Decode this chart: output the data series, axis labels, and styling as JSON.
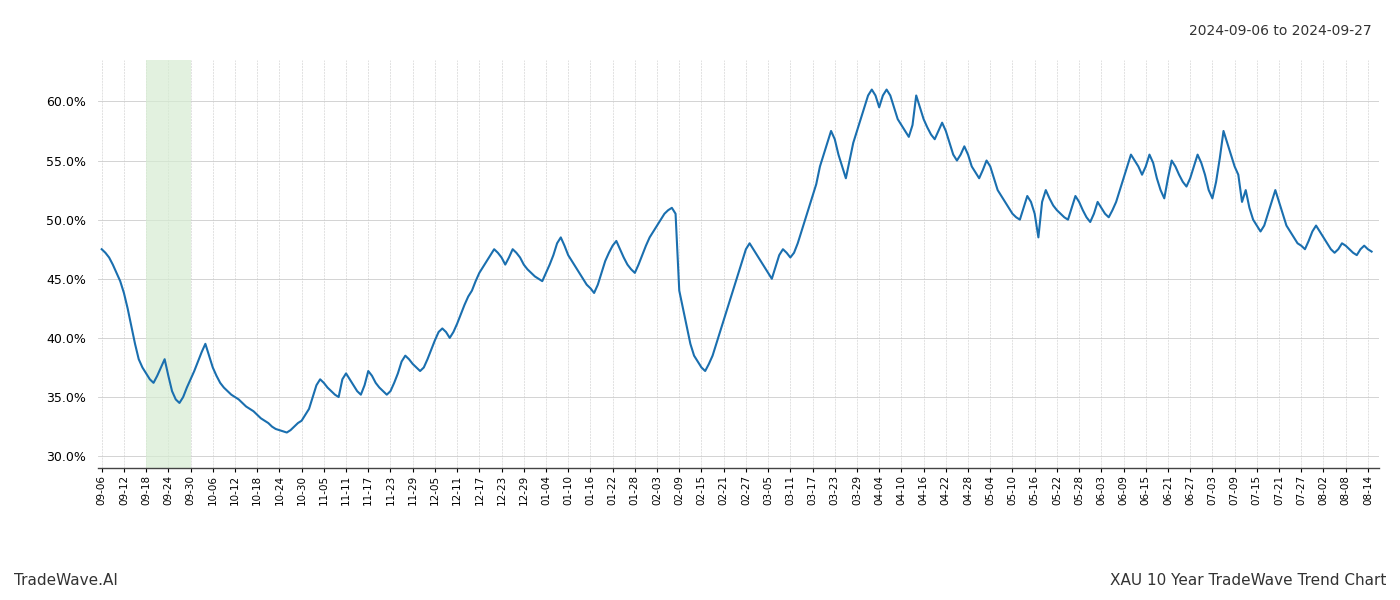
{
  "title_date": "2024-09-06 to 2024-09-27",
  "footer_left": "TradeWave.AI",
  "footer_right": "XAU 10 Year TradeWave Trend Chart",
  "line_color": "#1a6faf",
  "line_width": 1.5,
  "shade_color": "#d6ecd2",
  "shade_alpha": 0.7,
  "background_color": "#ffffff",
  "grid_color": "#cccccc",
  "ylim": [
    29.0,
    63.5
  ],
  "yticks": [
    30.0,
    35.0,
    40.0,
    45.0,
    50.0,
    55.0,
    60.0
  ],
  "shade_start_date": "2014-09-18",
  "shade_end_date": "2014-09-30",
  "start_date": "2014-09-06",
  "label_interval": 6,
  "y_values": [
    47.5,
    47.2,
    46.8,
    46.2,
    45.5,
    44.8,
    43.8,
    42.5,
    41.0,
    39.5,
    38.2,
    37.5,
    37.0,
    36.5,
    36.2,
    36.8,
    37.5,
    38.2,
    36.8,
    35.5,
    34.8,
    34.5,
    35.0,
    35.8,
    36.5,
    37.2,
    38.0,
    38.8,
    39.5,
    38.5,
    37.5,
    36.8,
    36.2,
    35.8,
    35.5,
    35.2,
    35.0,
    34.8,
    34.5,
    34.2,
    34.0,
    33.8,
    33.5,
    33.2,
    33.0,
    32.8,
    32.5,
    32.3,
    32.2,
    32.1,
    32.0,
    32.2,
    32.5,
    32.8,
    33.0,
    33.5,
    34.0,
    35.0,
    36.0,
    36.5,
    36.2,
    35.8,
    35.5,
    35.2,
    35.0,
    36.5,
    37.0,
    36.5,
    36.0,
    35.5,
    35.2,
    36.0,
    37.2,
    36.8,
    36.2,
    35.8,
    35.5,
    35.2,
    35.5,
    36.2,
    37.0,
    38.0,
    38.5,
    38.2,
    37.8,
    37.5,
    37.2,
    37.5,
    38.2,
    39.0,
    39.8,
    40.5,
    40.8,
    40.5,
    40.0,
    40.5,
    41.2,
    42.0,
    42.8,
    43.5,
    44.0,
    44.8,
    45.5,
    46.0,
    46.5,
    47.0,
    47.5,
    47.2,
    46.8,
    46.2,
    46.8,
    47.5,
    47.2,
    46.8,
    46.2,
    45.8,
    45.5,
    45.2,
    45.0,
    44.8,
    45.5,
    46.2,
    47.0,
    48.0,
    48.5,
    47.8,
    47.0,
    46.5,
    46.0,
    45.5,
    45.0,
    44.5,
    44.2,
    43.8,
    44.5,
    45.5,
    46.5,
    47.2,
    47.8,
    48.2,
    47.5,
    46.8,
    46.2,
    45.8,
    45.5,
    46.2,
    47.0,
    47.8,
    48.5,
    49.0,
    49.5,
    50.0,
    50.5,
    50.8,
    51.0,
    50.5,
    44.0,
    42.5,
    41.0,
    39.5,
    38.5,
    38.0,
    37.5,
    37.2,
    37.8,
    38.5,
    39.5,
    40.5,
    41.5,
    42.5,
    43.5,
    44.5,
    45.5,
    46.5,
    47.5,
    48.0,
    47.5,
    47.0,
    46.5,
    46.0,
    45.5,
    45.0,
    46.0,
    47.0,
    47.5,
    47.2,
    46.8,
    47.2,
    48.0,
    49.0,
    50.0,
    51.0,
    52.0,
    53.0,
    54.5,
    55.5,
    56.5,
    57.5,
    56.8,
    55.5,
    54.5,
    53.5,
    55.0,
    56.5,
    57.5,
    58.5,
    59.5,
    60.5,
    61.0,
    60.5,
    59.5,
    60.5,
    61.0,
    60.5,
    59.5,
    58.5,
    58.0,
    57.5,
    57.0,
    58.0,
    60.5,
    59.5,
    58.5,
    57.8,
    57.2,
    56.8,
    57.5,
    58.2,
    57.5,
    56.5,
    55.5,
    55.0,
    55.5,
    56.2,
    55.5,
    54.5,
    54.0,
    53.5,
    54.2,
    55.0,
    54.5,
    53.5,
    52.5,
    52.0,
    51.5,
    51.0,
    50.5,
    50.2,
    50.0,
    51.0,
    52.0,
    51.5,
    50.5,
    48.5,
    51.5,
    52.5,
    51.8,
    51.2,
    50.8,
    50.5,
    50.2,
    50.0,
    51.0,
    52.0,
    51.5,
    50.8,
    50.2,
    49.8,
    50.5,
    51.5,
    51.0,
    50.5,
    50.2,
    50.8,
    51.5,
    52.5,
    53.5,
    54.5,
    55.5,
    55.0,
    54.5,
    53.8,
    54.5,
    55.5,
    54.8,
    53.5,
    52.5,
    51.8,
    53.5,
    55.0,
    54.5,
    53.8,
    53.2,
    52.8,
    53.5,
    54.5,
    55.5,
    54.8,
    53.8,
    52.5,
    51.8,
    53.2,
    55.2,
    57.5,
    56.5,
    55.5,
    54.5,
    53.8,
    51.5,
    52.5,
    51.0,
    50.0,
    49.5,
    49.0,
    49.5,
    50.5,
    51.5,
    52.5,
    51.5,
    50.5,
    49.5,
    49.0,
    48.5,
    48.0,
    47.8,
    47.5,
    48.2,
    49.0,
    49.5,
    49.0,
    48.5,
    48.0,
    47.5,
    47.2,
    47.5,
    48.0,
    47.8,
    47.5,
    47.2,
    47.0,
    47.5,
    47.8,
    47.5,
    47.3
  ]
}
